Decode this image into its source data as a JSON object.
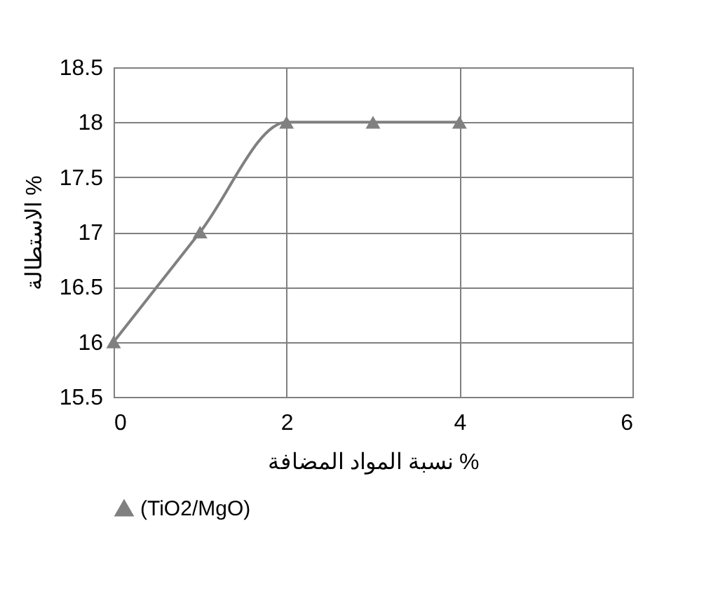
{
  "chart_data": {
    "type": "line",
    "xlabel": "نسبة المواد المضافة %",
    "ylabel": "الاستطالة %",
    "x": [
      0,
      1,
      2,
      3,
      4
    ],
    "series": [
      {
        "name": "(TiO2/MgO)",
        "color": "#808080",
        "values": [
          16,
          17,
          18,
          18,
          18
        ]
      }
    ],
    "xlim": [
      0,
      6
    ],
    "xticks": [
      0,
      2,
      4,
      6
    ],
    "ylim": [
      15.5,
      18.5
    ],
    "yticks": [
      15.5,
      16,
      16.5,
      17,
      17.5,
      18,
      18.5
    ],
    "grid": true,
    "legend": "bottom",
    "marker": "triangle",
    "line_style": "solid"
  }
}
